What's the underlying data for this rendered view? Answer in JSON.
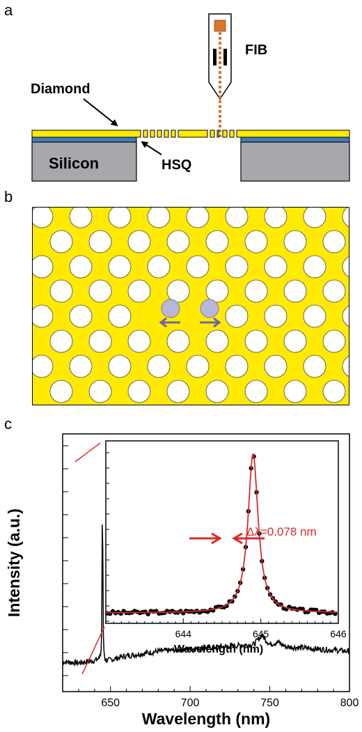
{
  "panel_a": {
    "letter": "a",
    "labels": {
      "fib": "FIB",
      "diamond": "Diamond",
      "silicon": "Silicon",
      "hsq": "HSQ"
    },
    "colors": {
      "diamond": "#FFEA00",
      "hsq": "#3E7CC1",
      "silicon": "#A8A8AC",
      "fib_beam": "#D7752F"
    }
  },
  "panel_b": {
    "letter": "b",
    "colors": {
      "slab": "#FFEA00",
      "hole": "#FFFFFF",
      "defect": "#B9B6D9",
      "arrow": "#6B66A8"
    }
  },
  "panel_c": {
    "letter": "c",
    "main_xlabel": "Wavelength (nm)",
    "main_ylabel": "Intensity (a.u.)",
    "main_xticks": [
      "650",
      "700",
      "750",
      "800"
    ],
    "inset_xlabel": "Wavelength (nm)",
    "inset_xticks": [
      "644",
      "645",
      "646"
    ],
    "linewidth_label": "Δλ=0.078 nm",
    "colors": {
      "fit": "#D62A2A",
      "data": "#000000"
    }
  },
  "chart_data": [
    {
      "type": "line",
      "x": [
        620,
        630,
        640,
        643,
        644,
        644.9,
        645.3,
        646,
        648,
        660,
        680,
        700,
        720,
        740,
        745,
        750,
        755,
        760,
        780,
        800
      ],
      "y": [
        0.045,
        0.04,
        0.05,
        0.06,
        0.1,
        0.92,
        0.2,
        0.06,
        0.05,
        0.07,
        0.09,
        0.1,
        0.11,
        0.12,
        0.16,
        0.12,
        0.13,
        0.11,
        0.1,
        0.09
      ],
      "xlabel": "Wavelength (nm)",
      "ylabel": "Intensity (a.u.)",
      "xlim": [
        620,
        800
      ]
    },
    {
      "type": "scatter",
      "x": [
        643.4,
        643.6,
        643.8,
        644.0,
        644.2,
        644.4,
        644.6,
        644.7,
        644.75,
        644.8,
        644.85,
        644.9,
        644.95,
        645.0,
        645.05,
        645.1,
        645.2,
        645.3,
        645.5,
        645.8
      ],
      "y": [
        0.02,
        0.02,
        0.03,
        0.03,
        0.04,
        0.06,
        0.12,
        0.25,
        0.45,
        0.7,
        0.95,
        0.96,
        0.72,
        0.45,
        0.28,
        0.18,
        0.1,
        0.06,
        0.03,
        0.02
      ],
      "xlabel": "Wavelength (nm)",
      "xlim": [
        643.0,
        646.0
      ],
      "annotations": [
        "Δλ=0.078 nm"
      ]
    }
  ]
}
